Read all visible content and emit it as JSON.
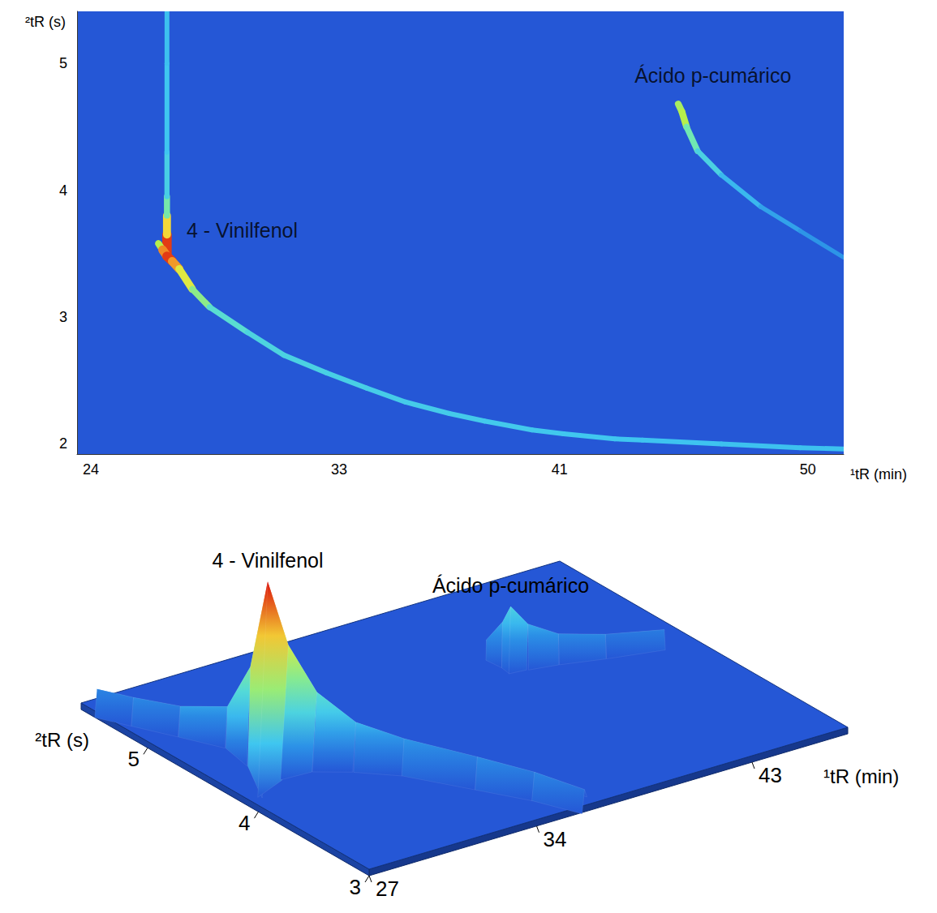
{
  "chart_data": [
    {
      "type": "heatmap",
      "x_label": "¹tR (min)",
      "y_label": "²tR (s)",
      "xlim": [
        23.5,
        51.3
      ],
      "xticks": [
        24,
        33,
        41,
        50
      ],
      "ylim": [
        1.92,
        5.41
      ],
      "yticks": [
        2,
        3,
        4,
        5
      ],
      "zlim": [
        0,
        100
      ],
      "series": [
        {
          "values": [
            [
              26.76,
              3.48,
              100
            ],
            [
              26.76,
              3.65,
              90
            ],
            [
              26.76,
              3.8,
              55
            ],
            [
              26.76,
              3.95,
              32
            ],
            [
              26.76,
              4.3,
              26
            ],
            [
              26.76,
              5.0,
              24
            ],
            [
              26.76,
              5.41,
              24
            ]
          ]
        },
        {
          "values": [
            [
              26.45,
              3.58,
              40
            ],
            [
              26.6,
              3.53,
              70
            ],
            [
              26.76,
              3.48,
              100
            ],
            [
              26.95,
              3.44,
              90
            ],
            [
              27.2,
              3.38,
              75
            ],
            [
              27.68,
              3.22,
              55
            ],
            [
              28.3,
              3.08,
              40
            ],
            [
              29.68,
              2.88,
              32
            ],
            [
              31.0,
              2.7,
              30
            ],
            [
              32.55,
              2.56,
              30
            ],
            [
              34.0,
              2.44,
              28
            ],
            [
              35.41,
              2.33,
              28
            ],
            [
              37.0,
              2.24,
              27
            ],
            [
              38.27,
              2.18,
              27
            ],
            [
              40.0,
              2.11,
              26
            ],
            [
              41.14,
              2.08,
              26
            ],
            [
              43.0,
              2.04,
              25
            ],
            [
              44.0,
              2.03,
              25
            ],
            [
              46.86,
              2.0,
              24
            ],
            [
              49.72,
              1.97,
              24
            ],
            [
              51.3,
              1.96,
              24
            ]
          ]
        },
        {
          "values": [
            [
              45.3,
              4.68,
              45
            ],
            [
              45.43,
              4.62,
              60
            ],
            [
              45.6,
              4.5,
              50
            ],
            [
              46.0,
              4.31,
              35
            ],
            [
              46.86,
              4.12,
              25
            ],
            [
              48.29,
              3.87,
              20
            ],
            [
              49.72,
              3.68,
              17
            ],
            [
              51.3,
              3.47,
              15
            ]
          ]
        }
      ],
      "annotations": [
        {
          "text": "4 - Vinilfenol",
          "x": 29.5,
          "y": 3.68
        },
        {
          "text": "Ácido p-cumárico",
          "x": 46.57,
          "y": 4.9
        }
      ]
    },
    {
      "type": "surface",
      "x_label": "¹tR (min)",
      "y_label": "²tR (s)",
      "xlim": [
        27,
        47
      ],
      "xticks": [
        27,
        34,
        43
      ],
      "ylim": [
        3,
        5.6
      ],
      "yticks": [
        3,
        4,
        5
      ],
      "zlim": [
        0,
        100
      ],
      "series": [
        {
          "values": [
            [
              27.2,
              5.5,
              12
            ],
            [
              27.8,
              5.3,
              12
            ],
            [
              28.6,
              5.05,
              13
            ],
            [
              29.5,
              4.82,
              18
            ],
            [
              30.0,
              4.72,
              45
            ],
            [
              30.4,
              4.65,
              100
            ],
            [
              30.8,
              4.55,
              62
            ],
            [
              31.3,
              4.4,
              36
            ],
            [
              32.0,
              4.2,
              22
            ],
            [
              33.0,
              3.98,
              16
            ],
            [
              34.3,
              3.6,
              14
            ],
            [
              35.3,
              3.3,
              12
            ],
            [
              36.0,
              3.0,
              10
            ]
          ]
        },
        {
          "values": [
            [
              40.6,
              4.88,
              8
            ],
            [
              41.0,
              4.82,
              20
            ],
            [
              41.2,
              4.79,
              30
            ],
            [
              41.6,
              4.72,
              20
            ],
            [
              42.5,
              4.64,
              13
            ],
            [
              44.0,
              4.54,
              10
            ],
            [
              46.0,
              4.44,
              8
            ]
          ]
        }
      ],
      "annotations": [
        {
          "text": "4 - Vinilfenol",
          "x": 30.4,
          "y": 4.65,
          "z": 100
        },
        {
          "text": "Ácido p-cumárico",
          "x": 41.2,
          "y": 4.79,
          "z": 30
        }
      ]
    }
  ]
}
